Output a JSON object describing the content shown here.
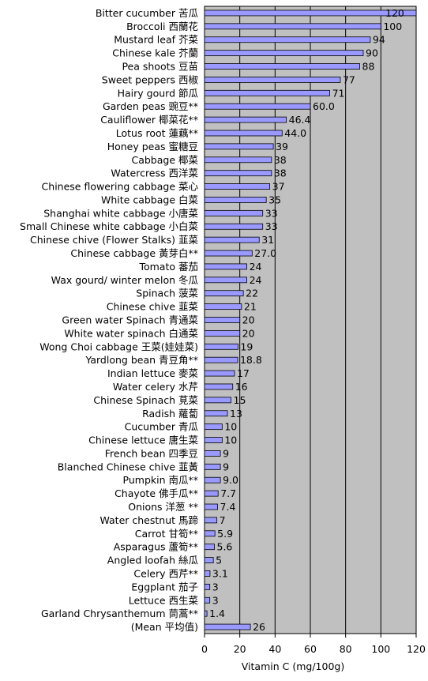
{
  "chart_data": {
    "type": "bar",
    "orientation": "horizontal",
    "xlabel": "Vitamin C (mg/100g)",
    "xlim": [
      0,
      120
    ],
    "xticks": [
      0,
      20,
      40,
      60,
      80,
      100,
      120
    ],
    "grid": "vertical",
    "plot_background": "#c0c0c0",
    "bar_color": "#9999ff",
    "categories": [
      "Bitter cucumber 苦瓜",
      "Broccoli 西蘭花",
      "Mustard leaf 芥菜",
      "Chinese kale 芥蘭",
      "Pea shoots 豆苗",
      "Sweet peppers 西椒",
      "Hairy gourd 節瓜",
      "Garden peas 豌豆**",
      "Cauliflower 椰菜花**",
      "Lotus root 蓮藕**",
      "Honey peas 蜜糖豆",
      "Cabbage 椰菜",
      "Watercress 西洋菜",
      "Chinese flowering cabbage 菜心",
      "White cabbage 白菜",
      "Shanghai white cabbage 小唐菜",
      "Small Chinese white cabbage 小白菜",
      "Chinese chive (Flower Stalks) 韮菜",
      "Chinese cabbage 黃芽白**",
      "Tomato 蕃茄",
      "Wax gourd/ winter melon 冬瓜",
      "Spinach 菠菜",
      "Chinese chive 韮菜",
      "Green water Spinach 青通菜",
      "White water spinach 白通菜",
      "Wong Choi cabbage 王菜(娃娃菜)",
      "Yardlong bean 青豆角**",
      "Indian lettuce 麥菜",
      "Water celery 水芹",
      "Chinese Spinach 莧菜",
      "Radish 蘿蔔",
      "Cucumber 青瓜",
      "Chinese lettuce 唐生菜",
      "French bean 四季豆",
      "Blanched Chinese chive 韮黃",
      "Pumpkin 南瓜**",
      "Chayote 佛手瓜**",
      "Onions 洋葱 **",
      "Water chestnut 馬蹄",
      "Carrot 甘筍**",
      "Asparagus 蘆筍**",
      "Angled loofah 絲瓜",
      "Celery 西芹**",
      "Eggplant 茄子",
      "Lettuce 西生菜",
      "Garland Chrysanthemum 茼蒿**",
      "(Mean 平均值)"
    ],
    "values": [
      120,
      100,
      94,
      90,
      88,
      77,
      71,
      60.0,
      46.4,
      44.0,
      39,
      38,
      38,
      37,
      35,
      33,
      33,
      31,
      27.0,
      24,
      24,
      22,
      21,
      20,
      20,
      19,
      18.8,
      17,
      16,
      15,
      13,
      10,
      10,
      9,
      9,
      9.0,
      7.7,
      7.4,
      7,
      5.9,
      5.6,
      5,
      3.1,
      3,
      3,
      1.4,
      26
    ],
    "value_labels": [
      "120",
      "100",
      "94",
      "90",
      "88",
      "77",
      "71",
      "60.0",
      "46.4",
      "44.0",
      "39",
      "38",
      "38",
      "37",
      "35",
      "33",
      "33",
      "31",
      "27.0",
      "24",
      "24",
      "22",
      "21",
      "20",
      "20",
      "19",
      "18.8",
      "17",
      "16",
      "15",
      "13",
      "10",
      "10",
      "9",
      "9",
      "9.0",
      "7.7",
      "7.4",
      "7",
      "5.9",
      "5.6",
      "5",
      "3.1",
      "3",
      "3",
      "1.4",
      "26"
    ]
  }
}
